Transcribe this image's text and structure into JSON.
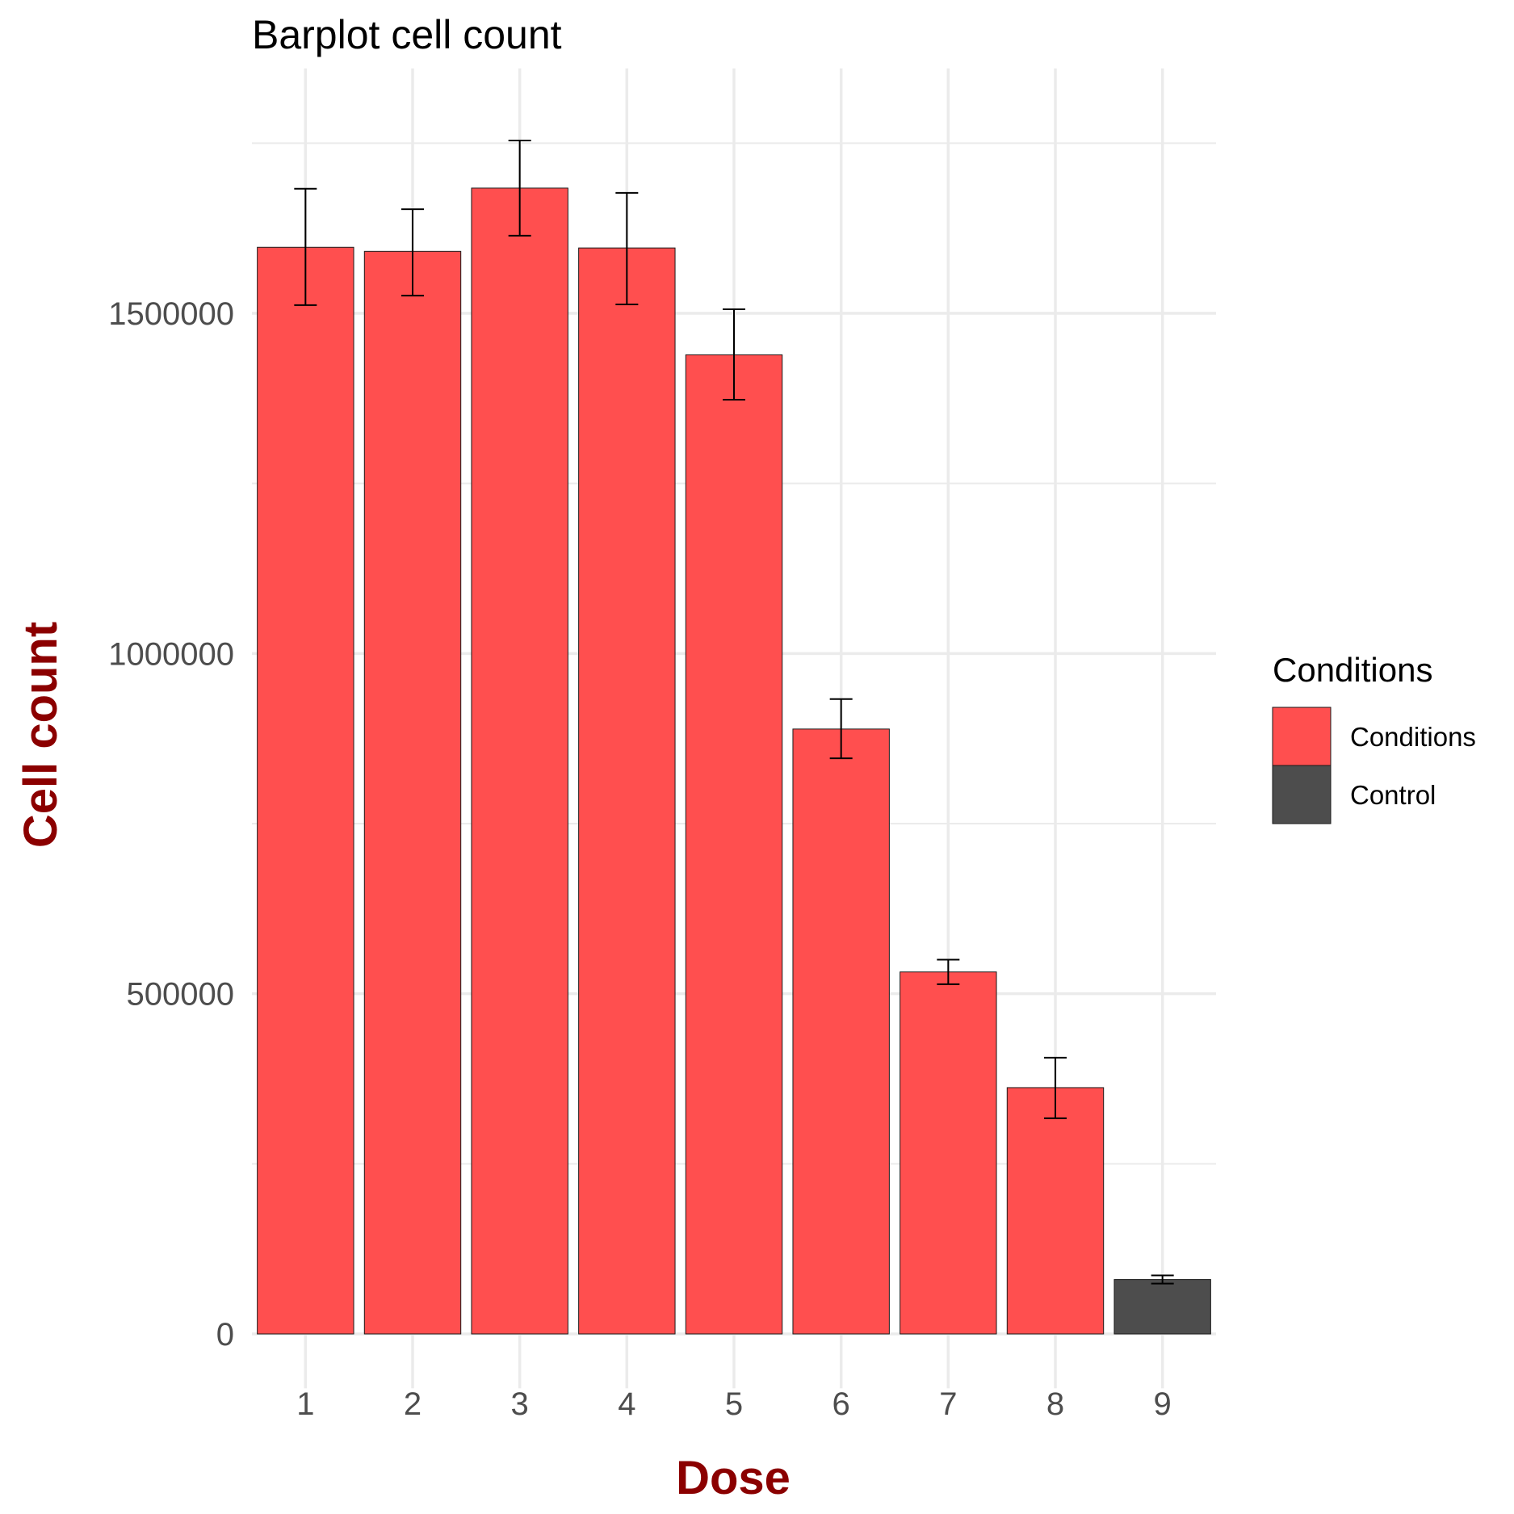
{
  "chart_data": {
    "type": "bar",
    "title": "Barplot cell count",
    "xlabel": "Dose",
    "ylabel": "Cell count",
    "categories": [
      "1",
      "2",
      "3",
      "4",
      "5",
      "6",
      "7",
      "8",
      "9"
    ],
    "values": [
      1597000,
      1591000,
      1684000,
      1596000,
      1439000,
      889000,
      532000,
      362000,
      80000
    ],
    "error_low": [
      1512000,
      1526000,
      1614000,
      1513000,
      1373000,
      846000,
      514000,
      317000,
      74000
    ],
    "error_high": [
      1683000,
      1653000,
      1754000,
      1677000,
      1506000,
      933000,
      550000,
      406000,
      86000
    ],
    "groups": [
      "Conditions",
      "Conditions",
      "Conditions",
      "Conditions",
      "Conditions",
      "Conditions",
      "Conditions",
      "Conditions",
      "Control"
    ],
    "ylim": [
      -80000,
      1860000
    ],
    "yticks": [
      0,
      500000,
      1000000,
      1500000
    ],
    "ytick_labels": [
      "0",
      "500000",
      "1000000",
      "1500000"
    ],
    "grid": true,
    "legend": {
      "title": "Conditions",
      "position": "right",
      "entries": [
        {
          "label": "Conditions",
          "color": "#ff4f4f"
        },
        {
          "label": "Control",
          "color": "#4d4d4d"
        }
      ]
    },
    "colors": {
      "Conditions": "#ff4f4f",
      "Control": "#4d4d4d",
      "axis_title": "#8b0000",
      "grid": "#ebebeb",
      "error_bar": "#000000"
    }
  }
}
